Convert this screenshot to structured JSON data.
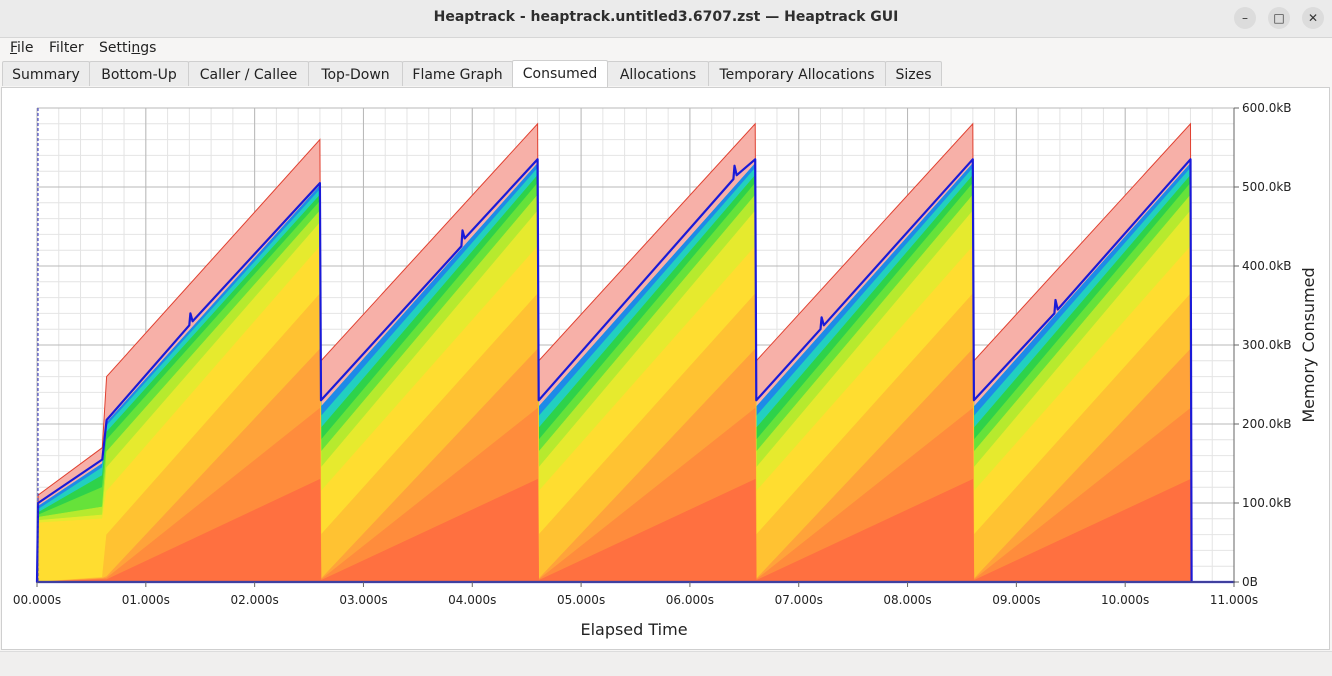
{
  "window": {
    "title": "Heaptrack - heaptrack.untitled3.6707.zst — Heaptrack GUI",
    "minimize_glyph": "–",
    "maximize_glyph": "□",
    "close_glyph": "✕"
  },
  "menu": {
    "file": {
      "mnemonic": "F",
      "rest": "ile"
    },
    "filter": {
      "label": "Filter"
    },
    "settings": {
      "before": "Setti",
      "mnemonic": "n",
      "after": "gs"
    }
  },
  "tabs": [
    {
      "label": "Summary"
    },
    {
      "label": "Bottom-Up"
    },
    {
      "label": "Caller / Callee"
    },
    {
      "label": "Top-Down"
    },
    {
      "label": "Flame Graph"
    },
    {
      "label": "Consumed"
    },
    {
      "label": "Allocations"
    },
    {
      "label": "Temporary Allocations"
    },
    {
      "label": "Sizes"
    }
  ],
  "active_tab": "Consumed",
  "chart_data": {
    "type": "area",
    "stacked": true,
    "xlabel": "Elapsed Time",
    "ylabel": "Memory Consumed",
    "x_ticks": [
      "00.000s",
      "01.000s",
      "02.000s",
      "03.000s",
      "04.000s",
      "05.000s",
      "06.000s",
      "07.000s",
      "08.000s",
      "09.000s",
      "10.000s",
      "11.000s"
    ],
    "y_ticks": [
      "0B",
      "100.0kB",
      "200.0kB",
      "300.0kB",
      "400.0kB",
      "500.0kB",
      "600.0kB"
    ],
    "xlim": [
      0,
      11
    ],
    "ylim": [
      0,
      600
    ],
    "grid": true,
    "total": {
      "x": [
        0,
        0.01,
        0.6,
        0.64,
        2.6,
        2.61,
        4.6,
        4.61,
        6.6,
        6.61,
        8.6,
        8.61,
        10.6,
        10.61,
        11.0
      ],
      "y": [
        0,
        110,
        170,
        260,
        560,
        280,
        580,
        280,
        580,
        280,
        580,
        280,
        580,
        0,
        0
      ]
    },
    "outline_series": {
      "x": [
        0,
        0.01,
        0.6,
        0.64,
        1.4,
        1.41,
        1.43,
        2.6,
        2.61,
        3.9,
        3.91,
        3.93,
        4.6,
        4.61,
        6.4,
        6.41,
        6.43,
        6.6,
        6.61,
        7.2,
        7.21,
        7.23,
        8.6,
        8.61,
        9.35,
        9.36,
        9.38,
        10.6,
        10.61,
        11.0
      ],
      "y": [
        0,
        100,
        155,
        205,
        325,
        340,
        330,
        505,
        230,
        425,
        445,
        435,
        535,
        230,
        510,
        527,
        515,
        535,
        230,
        320,
        335,
        325,
        535,
        230,
        340,
        357,
        345,
        535,
        0,
        0
      ]
    },
    "bands": [
      {
        "color": "#ff7040",
        "x": [
          0,
          0.6,
          0.64,
          2.6,
          2.61,
          4.6,
          4.61,
          6.6,
          6.61,
          8.6,
          8.61,
          10.6,
          10.61,
          11.0
        ],
        "y": [
          0,
          3,
          3,
          130,
          2,
          130,
          2,
          130,
          2,
          130,
          2,
          130,
          0,
          0
        ]
      },
      {
        "color": "#ff8c3c",
        "x": [
          0,
          0.6,
          0.64,
          2.6,
          2.61,
          4.6,
          4.61,
          6.6,
          6.61,
          8.6,
          8.61,
          10.6,
          10.61,
          11.0
        ],
        "y": [
          0,
          4,
          5,
          220,
          3,
          220,
          3,
          220,
          3,
          220,
          3,
          220,
          0,
          0
        ]
      },
      {
        "color": "#ffa33a",
        "x": [
          0,
          0.6,
          0.64,
          2.6,
          2.61,
          4.6,
          4.61,
          6.6,
          6.61,
          8.6,
          8.61,
          10.6,
          10.61,
          11.0
        ],
        "y": [
          0,
          5,
          7,
          295,
          4,
          295,
          4,
          295,
          4,
          295,
          4,
          295,
          0,
          0
        ]
      },
      {
        "color": "#ffc232",
        "x": [
          0,
          0.6,
          0.64,
          2.6,
          2.61,
          4.6,
          4.61,
          6.6,
          6.61,
          8.6,
          8.61,
          10.6,
          10.61,
          11.0
        ],
        "y": [
          0,
          6,
          60,
          365,
          60,
          365,
          60,
          365,
          60,
          365,
          60,
          365,
          0,
          0
        ]
      },
      {
        "color": "#ffdd30",
        "x": [
          0,
          0.01,
          0.6,
          0.64,
          2.6,
          2.61,
          4.6,
          4.61,
          6.6,
          6.61,
          8.6,
          8.61,
          10.6,
          10.61,
          11.0
        ],
        "y": [
          0,
          75,
          80,
          115,
          425,
          115,
          425,
          115,
          425,
          115,
          425,
          115,
          425,
          0,
          0
        ]
      },
      {
        "color": "#e6ea2e",
        "x": [
          0,
          0.01,
          0.6,
          0.64,
          2.6,
          2.61,
          4.6,
          4.61,
          6.6,
          6.61,
          8.6,
          8.61,
          10.6,
          10.61,
          11.0
        ],
        "y": [
          0,
          78,
          85,
          145,
          455,
          145,
          470,
          145,
          470,
          145,
          470,
          145,
          470,
          0,
          0
        ]
      },
      {
        "color": "#b6ea2e",
        "x": [
          0,
          0.01,
          0.6,
          0.64,
          2.6,
          2.61,
          4.6,
          4.61,
          6.6,
          6.61,
          8.6,
          8.61,
          10.6,
          10.61,
          11.0
        ],
        "y": [
          0,
          82,
          95,
          165,
          470,
          165,
          490,
          165,
          490,
          165,
          490,
          165,
          490,
          0,
          0
        ]
      },
      {
        "color": "#66e23a",
        "x": [
          0,
          0.01,
          0.6,
          0.64,
          2.6,
          2.61,
          4.6,
          4.61,
          6.6,
          6.61,
          8.6,
          8.61,
          10.6,
          10.61,
          11.0
        ],
        "y": [
          0,
          85,
          120,
          180,
          482,
          180,
          505,
          180,
          505,
          180,
          505,
          180,
          505,
          0,
          0
        ]
      },
      {
        "color": "#2ed24a",
        "x": [
          0,
          0.01,
          0.6,
          0.64,
          2.6,
          2.61,
          4.6,
          4.61,
          6.6,
          6.61,
          8.6,
          8.61,
          10.6,
          10.61,
          11.0
        ],
        "y": [
          0,
          88,
          135,
          190,
          490,
          195,
          515,
          195,
          515,
          195,
          515,
          195,
          515,
          0,
          0
        ]
      },
      {
        "color": "#22cfc0",
        "x": [
          0,
          0.01,
          0.6,
          0.64,
          2.6,
          2.61,
          4.6,
          4.61,
          6.6,
          6.61,
          8.6,
          8.61,
          10.6,
          10.61,
          11.0
        ],
        "y": [
          0,
          92,
          145,
          198,
          497,
          210,
          524,
          210,
          524,
          210,
          524,
          210,
          524,
          0,
          0
        ]
      },
      {
        "color": "#1e8ae8",
        "x": [
          0,
          0.01,
          0.6,
          0.64,
          2.6,
          2.61,
          4.6,
          4.61,
          6.6,
          6.61,
          8.6,
          8.61,
          10.6,
          10.61,
          11.0
        ],
        "y": [
          0,
          96,
          150,
          202,
          502,
          222,
          530,
          222,
          530,
          222,
          530,
          222,
          530,
          0,
          0
        ]
      }
    ]
  }
}
